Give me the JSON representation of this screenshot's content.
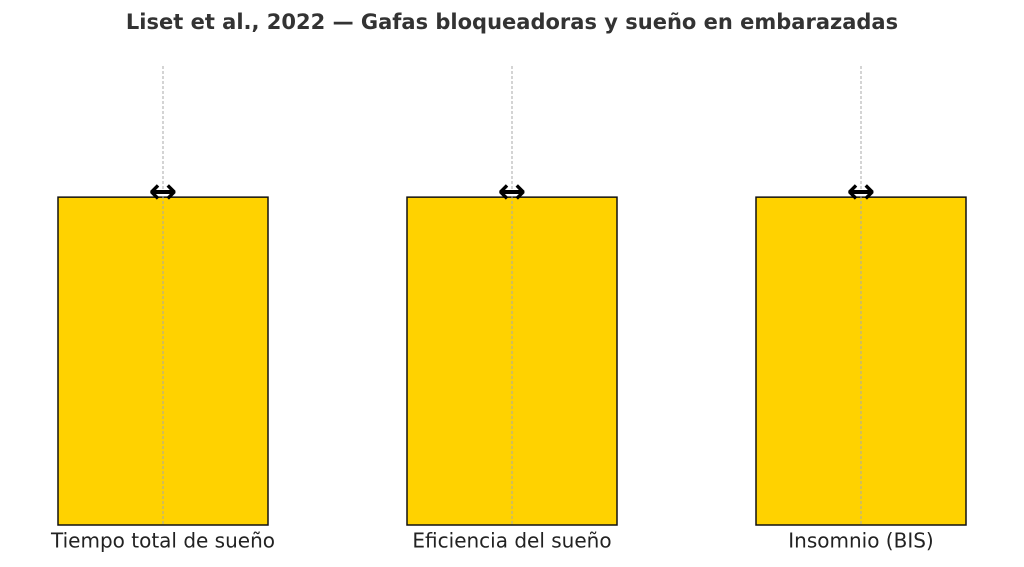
{
  "chart_data": {
    "type": "bar",
    "title": "Liset et al., 2022 — Gafas bloqueadoras y sueño en embarazadas",
    "categories": [
      "Tiempo total de sueño",
      "Eficiencia del sueño",
      "Insomnio (BIS)"
    ],
    "values": [
      1,
      1,
      1
    ],
    "annotations": [
      "↔",
      "↔",
      "↔"
    ],
    "color": "#ffd200",
    "ylim": [
      0,
      1.4
    ],
    "grid": "x"
  }
}
